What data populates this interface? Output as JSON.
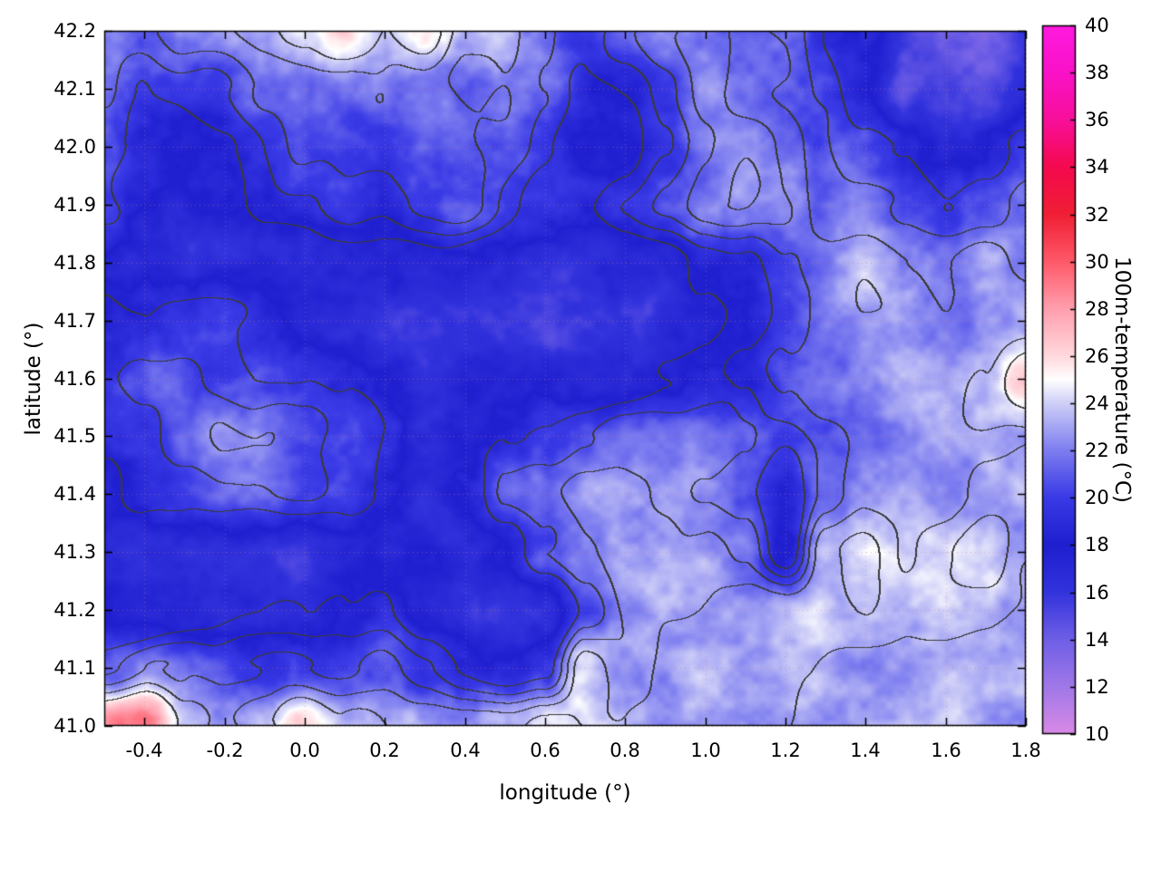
{
  "figure": {
    "background": "#ffffff"
  },
  "chart_data": {
    "type": "heatmap",
    "title": "",
    "xlabel": "longitude (°)",
    "ylabel": "latitude (°)",
    "colorbar_label": "100m-temperature (°C)",
    "x_range": [
      -0.5,
      1.8
    ],
    "y_range": [
      41.0,
      42.2
    ],
    "grid": true,
    "x_ticks": [
      -0.4,
      -0.2,
      0.0,
      0.2,
      0.4,
      0.6,
      0.8,
      1.0,
      1.2,
      1.4,
      1.6,
      1.8
    ],
    "x_tick_labels": [
      "-0.4",
      "-0.2",
      "0.0",
      "0.2",
      "0.4",
      "0.6",
      "0.8",
      "1.0",
      "1.2",
      "1.4",
      "1.6",
      "1.8"
    ],
    "y_ticks": [
      41.0,
      41.1,
      41.2,
      41.3,
      41.4,
      41.5,
      41.6,
      41.7,
      41.8,
      41.9,
      42.0,
      42.1,
      42.2
    ],
    "y_tick_labels": [
      "41.0",
      "41.1",
      "41.2",
      "41.3",
      "41.4",
      "41.5",
      "41.6",
      "41.7",
      "41.8",
      "41.9",
      "42.0",
      "42.1",
      "42.2"
    ],
    "colorbar": {
      "range": [
        10,
        40
      ],
      "ticks": [
        10,
        12,
        14,
        16,
        18,
        20,
        22,
        24,
        26,
        28,
        30,
        32,
        34,
        36,
        38,
        40
      ],
      "tick_labels": [
        "10",
        "12",
        "14",
        "16",
        "18",
        "20",
        "22",
        "24",
        "26",
        "28",
        "30",
        "32",
        "34",
        "36",
        "38",
        "40"
      ],
      "palette": [
        {
          "t": 10,
          "c": "#d98ae6"
        },
        {
          "t": 12,
          "c": "#a078e8"
        },
        {
          "t": 14,
          "c": "#6f5fe6"
        },
        {
          "t": 16,
          "c": "#3333dd"
        },
        {
          "t": 18,
          "c": "#1f1fd0"
        },
        {
          "t": 20,
          "c": "#3a3ae6"
        },
        {
          "t": 22,
          "c": "#7d7df0"
        },
        {
          "t": 24,
          "c": "#cfcff8"
        },
        {
          "t": 25,
          "c": "#ffffff"
        },
        {
          "t": 26,
          "c": "#ffd9de"
        },
        {
          "t": 28,
          "c": "#ff9fae"
        },
        {
          "t": 30,
          "c": "#ff5a6a"
        },
        {
          "t": 32,
          "c": "#f01f35"
        },
        {
          "t": 34,
          "c": "#f50a4e"
        },
        {
          "t": 36,
          "c": "#f80f9a"
        },
        {
          "t": 38,
          "c": "#fa12c8"
        },
        {
          "t": 40,
          "c": "#ff1ae0"
        }
      ]
    },
    "contour_color": "#3a3a3a",
    "lons": [
      -0.5,
      -0.4,
      -0.3,
      -0.2,
      -0.1,
      0.0,
      0.1,
      0.2,
      0.3,
      0.4,
      0.5,
      0.6,
      0.7,
      0.8,
      0.9,
      1.0,
      1.1,
      1.2,
      1.3,
      1.4,
      1.5,
      1.6,
      1.7,
      1.8
    ],
    "lats": [
      42.2,
      42.1,
      42.0,
      41.9,
      41.8,
      41.7,
      41.6,
      41.5,
      41.4,
      41.3,
      41.2,
      41.1,
      41.0
    ],
    "values": [
      [
        22,
        22,
        23,
        23,
        23,
        24,
        26,
        24,
        26,
        23,
        23,
        22,
        20,
        21,
        22,
        22,
        21,
        21,
        19,
        19,
        15,
        14,
        14,
        16
      ],
      [
        22,
        20,
        20,
        20,
        21,
        21,
        21,
        22,
        22,
        21,
        22,
        21,
        19,
        19,
        20,
        22,
        21,
        21,
        20,
        18,
        15,
        15,
        15,
        17
      ],
      [
        21,
        19,
        18,
        18,
        19,
        20,
        20,
        20,
        21,
        21,
        21,
        20,
        18,
        18,
        20,
        22,
        23,
        22,
        21,
        20,
        19,
        17,
        18,
        20
      ],
      [
        20,
        18,
        17,
        18,
        19,
        19,
        20,
        19,
        20,
        21,
        20,
        19,
        19,
        20,
        21,
        22,
        23,
        22,
        21,
        22,
        21,
        20,
        21,
        22
      ],
      [
        18,
        17,
        16,
        16,
        17,
        17,
        17,
        17,
        17,
        17,
        17,
        16,
        16,
        17,
        17,
        18,
        19,
        21,
        22,
        23,
        22,
        22,
        23,
        22
      ],
      [
        19,
        19,
        20,
        20,
        19,
        18,
        17,
        16,
        16,
        16,
        16,
        16,
        16,
        16,
        17,
        17,
        18,
        20,
        22,
        23,
        23,
        22,
        23,
        23
      ],
      [
        20,
        21,
        21,
        20,
        20,
        20,
        19,
        18,
        17,
        18,
        17,
        17,
        17,
        17,
        18,
        18,
        19,
        21,
        22,
        22,
        23,
        23,
        24,
        27
      ],
      [
        19,
        20,
        21,
        22,
        22,
        21,
        20,
        19,
        16,
        17,
        19,
        20,
        21,
        22,
        22,
        22,
        21,
        20,
        21,
        22,
        22,
        23,
        23,
        23
      ],
      [
        18,
        19,
        20,
        21,
        21,
        21,
        20,
        18,
        16,
        18,
        21,
        22,
        23,
        23,
        23,
        22,
        21,
        18,
        21,
        23,
        23,
        22,
        23,
        23
      ],
      [
        17,
        16,
        16,
        16,
        16,
        16,
        17,
        17,
        18,
        17,
        18,
        21,
        22,
        23,
        23,
        23,
        22,
        18,
        24,
        25,
        23,
        24,
        25,
        23
      ],
      [
        18,
        17,
        17,
        17,
        17,
        17,
        18,
        19,
        17,
        16,
        16,
        16,
        20,
        22,
        23,
        23,
        23,
        23,
        24,
        24,
        23,
        24,
        24,
        23
      ],
      [
        21,
        22,
        21,
        20,
        20,
        20,
        20,
        21,
        20,
        19,
        18,
        19,
        25,
        23,
        23,
        23,
        23,
        23,
        23,
        23,
        23,
        23,
        23,
        23
      ],
      [
        28,
        29,
        24,
        23,
        24,
        26,
        24,
        23,
        23,
        23,
        23,
        24,
        24,
        23,
        23,
        23,
        23,
        23,
        23,
        23,
        23,
        23,
        23,
        23
      ]
    ]
  }
}
